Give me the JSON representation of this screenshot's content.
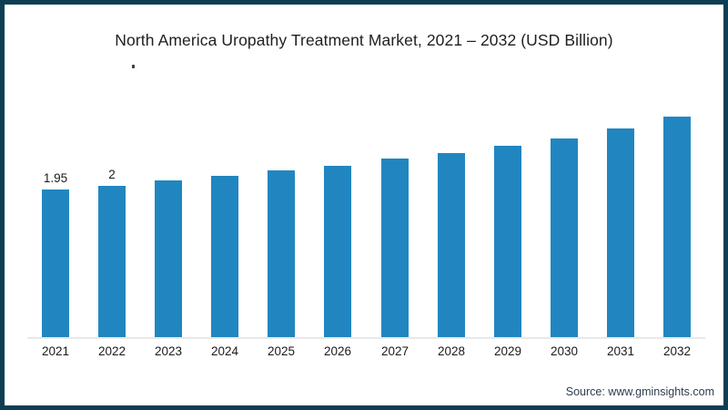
{
  "frame": {
    "border_color": "#0e3e54",
    "background_color": "#ffffff"
  },
  "title": "North America Uropathy Treatment Market, 2021 – 2032 (USD Billion)",
  "source": "Source: www.gminsights.com",
  "chart_data": {
    "type": "bar",
    "title": "North America Uropathy Treatment Market, 2021 – 2032 (USD Billion)",
    "categories": [
      "2021",
      "2022",
      "2023",
      "2024",
      "2025",
      "2026",
      "2027",
      "2028",
      "2029",
      "2030",
      "2031",
      "2032"
    ],
    "values": [
      1.95,
      2.0,
      2.07,
      2.13,
      2.2,
      2.26,
      2.36,
      2.43,
      2.53,
      2.63,
      2.76,
      2.91
    ],
    "data_labels": [
      "1.95",
      "2",
      "",
      "",
      "",
      "",
      "",
      "",
      "",
      "",
      "",
      ""
    ],
    "xlabel": "",
    "ylabel": "",
    "ylim": [
      0,
      3.25
    ],
    "grid": false,
    "legend": false,
    "bar_color": "#2186c0",
    "axis_line_color": "#e8e8e8"
  }
}
